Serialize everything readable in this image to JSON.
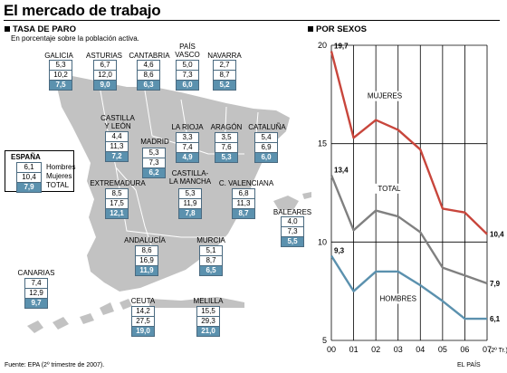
{
  "title": "El mercado de trabajo",
  "left": {
    "section_title": "TASA DE PARO",
    "subtitle": "En porcentaje sobre la población activa.",
    "legend": {
      "name": "ESPAÑA",
      "men": "6,1",
      "women": "10,4",
      "total": "7,9",
      "men_label": "Hombres",
      "women_label": "Mujeres",
      "total_label": "TOTAL"
    },
    "regions": [
      {
        "id": "galicia",
        "name": "GALICIA",
        "men": "5,3",
        "women": "10,2",
        "total": "7,5"
      },
      {
        "id": "asturias",
        "name": "ASTURIAS",
        "men": "6,7",
        "women": "12,0",
        "total": "9,0"
      },
      {
        "id": "cantabria",
        "name": "CANTABRIA",
        "men": "4,6",
        "women": "8,6",
        "total": "6,3"
      },
      {
        "id": "pais-vasco",
        "name": "PAÍS\nVASCO",
        "men": "5,0",
        "women": "7,3",
        "total": "6,0"
      },
      {
        "id": "navarra",
        "name": "NAVARRA",
        "men": "2,7",
        "women": "8,7",
        "total": "5,2"
      },
      {
        "id": "castilla-leon",
        "name": "CASTILLA\nY LEÓN",
        "men": "4,4",
        "women": "11,3",
        "total": "7,2"
      },
      {
        "id": "la-rioja",
        "name": "LA RIOJA",
        "men": "3,3",
        "women": "7,4",
        "total": "4,9"
      },
      {
        "id": "aragon",
        "name": "ARAGÓN",
        "men": "3,5",
        "women": "7,6",
        "total": "5,3"
      },
      {
        "id": "cataluna",
        "name": "CATALUÑA",
        "men": "5,4",
        "women": "6,9",
        "total": "6,0"
      },
      {
        "id": "madrid",
        "name": "MADRID",
        "men": "5,3",
        "women": "7,3",
        "total": "6,2"
      },
      {
        "id": "extremadura",
        "name": "EXTREMADURA",
        "men": "8,5",
        "women": "17,5",
        "total": "12,1"
      },
      {
        "id": "castilla-mancha",
        "name": "CASTILLA-\nLA MANCHA",
        "men": "5,3",
        "women": "11,9",
        "total": "7,8"
      },
      {
        "id": "valenciana",
        "name": "C. VALENCIANA",
        "men": "6,8",
        "women": "11,3",
        "total": "8,7"
      },
      {
        "id": "baleares",
        "name": "BALEARES",
        "men": "4,0",
        "women": "7,3",
        "total": "5,5"
      },
      {
        "id": "andalucia",
        "name": "ANDALUCÍA",
        "men": "8,6",
        "women": "16,9",
        "total": "11,9"
      },
      {
        "id": "murcia",
        "name": "MURCIA",
        "men": "5,1",
        "women": "8,7",
        "total": "6,5"
      },
      {
        "id": "canarias",
        "name": "CANARIAS",
        "men": "7,4",
        "women": "12,9",
        "total": "9,7"
      },
      {
        "id": "ceuta",
        "name": "CEUTA",
        "men": "14,2",
        "women": "27,5",
        "total": "19,0"
      },
      {
        "id": "melilla",
        "name": "MELILLA",
        "men": "15,5",
        "women": "29,3",
        "total": "21,0"
      }
    ]
  },
  "right": {
    "section_title": "POR SEXOS"
  },
  "chart_data": {
    "type": "line",
    "title": "POR SEXOS",
    "x": [
      "00",
      "01",
      "02",
      "03",
      "04",
      "05",
      "06",
      "07"
    ],
    "x_note": "(2º Tr.)",
    "ylim": [
      5,
      20
    ],
    "yticks": [
      "5",
      "10",
      "15",
      "20"
    ],
    "grid": true,
    "series": [
      {
        "name": "MUJERES",
        "color": "#c8463c",
        "values": [
          19.7,
          15.3,
          16.2,
          15.7,
          14.7,
          11.7,
          11.5,
          10.4
        ],
        "start_label": "19,7",
        "end_label": "10,4"
      },
      {
        "name": "TOTAL",
        "color": "#808080",
        "values": [
          13.4,
          10.6,
          11.6,
          11.3,
          10.5,
          8.7,
          8.3,
          7.9
        ],
        "start_label": "13,4",
        "end_label": "7,9"
      },
      {
        "name": "HOMBRES",
        "color": "#5b91ae",
        "values": [
          9.3,
          7.5,
          8.5,
          8.5,
          7.8,
          7.0,
          6.1,
          6.1
        ],
        "start_label": "9,3",
        "end_label": "6,1"
      }
    ]
  },
  "footer": {
    "source": "Fuente: EPA (2º trimestre de 2007).",
    "brand": "EL PAÍS"
  },
  "colors": {
    "accent": "#5b91ae",
    "women": "#c8463c",
    "total": "#808080",
    "map": "#c2c2c2"
  }
}
